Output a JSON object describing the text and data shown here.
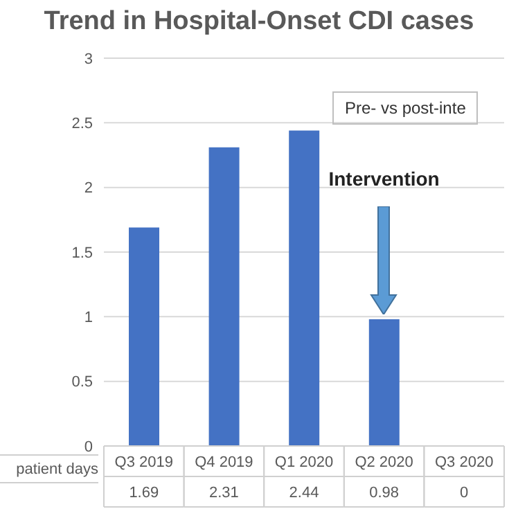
{
  "chart_data": {
    "type": "bar",
    "title": "Trend in Hospital-Onset CDI cases",
    "categories": [
      "Q3 2019",
      "Q4 2019",
      "Q1 2020",
      "Q2 2020",
      "Q3 2020"
    ],
    "series": [
      {
        "name": "patient days",
        "color": "#4472c4",
        "values": [
          1.69,
          2.31,
          2.44,
          0.98,
          0
        ]
      }
    ],
    "ylim": [
      0,
      3
    ],
    "yticks": [
      0,
      0.5,
      1,
      1.5,
      2,
      2.5,
      3
    ],
    "grid": "y",
    "data_labels": true,
    "annotations": [
      "Intervention",
      "Pre- vs post-inte"
    ]
  }
}
